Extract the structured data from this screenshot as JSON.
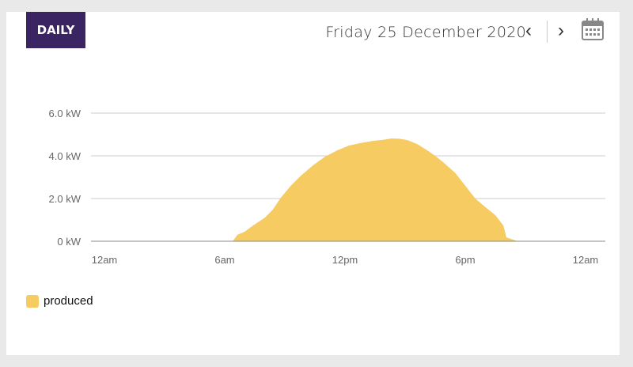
{
  "header": {
    "tab_label": "DAILY",
    "date": "Friday 25 December 2020",
    "prev_icon": "chevron-left-icon",
    "next_icon": "chevron-right-icon",
    "calendar_icon": "calendar-icon"
  },
  "colors": {
    "accent": "#3b2462",
    "produced": "#f5cb62"
  },
  "chart_data": {
    "type": "area",
    "xlabel": "",
    "ylabel": "",
    "xlim": [
      0,
      24
    ],
    "ylim": [
      0,
      6
    ],
    "x_ticks": [
      {
        "v": 0,
        "label": "12am"
      },
      {
        "v": 6,
        "label": "6am"
      },
      {
        "v": 12,
        "label": "12pm"
      },
      {
        "v": 18,
        "label": "6pm"
      },
      {
        "v": 24,
        "label": "12am"
      }
    ],
    "y_ticks": [
      {
        "v": 0,
        "label": "0 kW"
      },
      {
        "v": 2,
        "label": "2.0 kW"
      },
      {
        "v": 4,
        "label": "4.0 kW"
      },
      {
        "v": 6,
        "label": "6.0 kW"
      }
    ],
    "grid": true,
    "legend": "bottom-left",
    "series": [
      {
        "name": "produced",
        "x": [
          0,
          6.4,
          6.63,
          7.0,
          7.42,
          8.0,
          8.4,
          8.8,
          9.3,
          9.8,
          10.4,
          11.0,
          11.6,
          12.2,
          12.8,
          13.4,
          13.9,
          14.3,
          14.7,
          15.1,
          15.6,
          16.1,
          16.5,
          16.9,
          17.5,
          18.0,
          18.5,
          19.0,
          19.5,
          19.9,
          20.05,
          20.4,
          20.6,
          24
        ],
        "y": [
          0,
          0,
          0.3,
          0.45,
          0.74,
          1.1,
          1.48,
          2.04,
          2.6,
          3.07,
          3.55,
          3.96,
          4.25,
          4.48,
          4.6,
          4.7,
          4.75,
          4.81,
          4.8,
          4.74,
          4.55,
          4.26,
          4.0,
          3.7,
          3.2,
          2.6,
          2.0,
          1.6,
          1.22,
          0.74,
          0.18,
          0.07,
          0,
          0
        ]
      }
    ]
  }
}
